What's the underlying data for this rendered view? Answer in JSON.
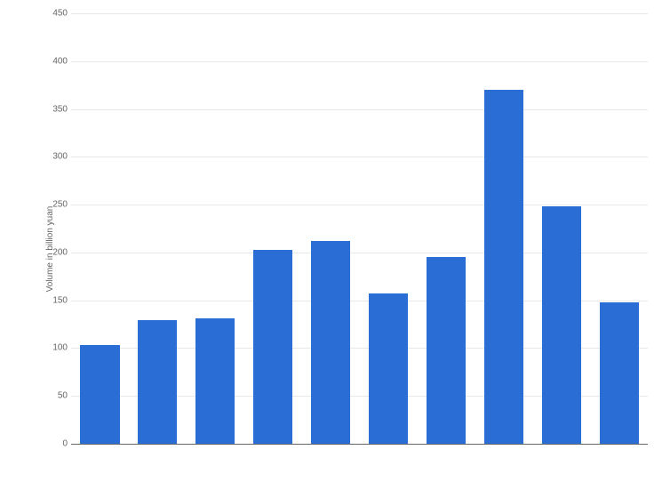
{
  "chart": {
    "type": "bar",
    "y_axis_label": "Volume in billion yuan",
    "label_fontsize": 10,
    "tick_fontsize": 10,
    "ylim": [
      0,
      450
    ],
    "ytick_step": 50,
    "yticks": [
      0,
      50,
      100,
      150,
      200,
      250,
      300,
      350,
      400,
      450
    ],
    "values": [
      103,
      129,
      131,
      203,
      212,
      157,
      195,
      370,
      248,
      148
    ],
    "bar_color": "#2a6ed5",
    "background_color": "#ffffff",
    "grid_color": "#e8e8e8",
    "axis_color": "#666666",
    "text_color": "#666666",
    "bar_width": 0.68
  }
}
